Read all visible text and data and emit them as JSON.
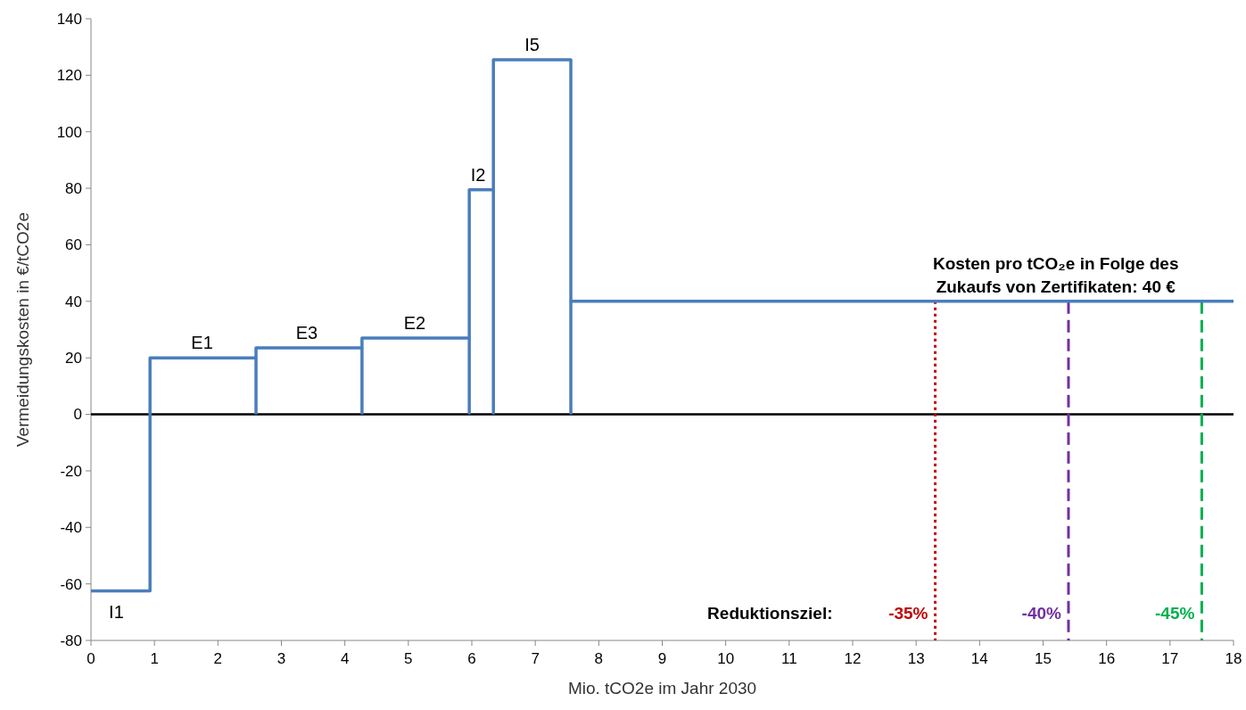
{
  "chart_data": {
    "type": "step",
    "xlabel": "Mio. tCO2e im Jahr 2030",
    "ylabel": "Vermeidungskosten in  €/tCO2e",
    "x": [
      0,
      0.93,
      2.6,
      4.27,
      5.96,
      6.34,
      7.56,
      18
    ],
    "series": [
      {
        "color": "#4a7ebb",
        "values": [
          -62.5,
          20,
          23.5,
          27,
          79.5,
          125.5,
          40,
          40
        ]
      }
    ],
    "xlim": [
      0,
      18
    ],
    "xticks": [
      0,
      1,
      2,
      3,
      4,
      5,
      6,
      7,
      8,
      9,
      10,
      11,
      12,
      13,
      14,
      15,
      16,
      17,
      18
    ],
    "ylim": [
      -80,
      140
    ],
    "yticks": [
      -80,
      -60,
      -40,
      -20,
      0,
      20,
      40,
      60,
      80,
      100,
      120,
      140
    ],
    "grid": false,
    "ref_lines": [
      {
        "axis": "y",
        "value": 0,
        "color": "#000000",
        "line_style": "solid"
      },
      {
        "axis": "x",
        "value": 13.3,
        "color": "#c00000",
        "line_style": "dotted"
      },
      {
        "axis": "x",
        "value": 15.4,
        "color": "#7030a0",
        "line_style": "dashed"
      },
      {
        "axis": "x",
        "value": 17.5,
        "color": "#00b050",
        "line_style": "dashed"
      }
    ],
    "annotations": [
      {
        "text": "I1",
        "x": 0.4,
        "y": -62.5
      },
      {
        "text": "E1",
        "x": 1.75,
        "y": 20
      },
      {
        "text": "E3",
        "x": 3.4,
        "y": 23.5
      },
      {
        "text": "E2",
        "x": 5.1,
        "y": 27
      },
      {
        "text": "I2",
        "x": 6.1,
        "y": 79.5
      },
      {
        "text": "I5",
        "x": 6.95,
        "y": 125.5
      },
      {
        "text": "-35%",
        "x": 13.3,
        "y": -80
      },
      {
        "text": "-40%",
        "x": 15.4,
        "y": -80
      },
      {
        "text": "-45%",
        "x": 17.5,
        "y": -80
      },
      {
        "text": "Kosten pro tCO₂e in Folge des\nZukaufs von Zertifikaten: 40 €",
        "x": 15.2,
        "y": 40
      },
      "Reduktionsziel:"
    ]
  }
}
